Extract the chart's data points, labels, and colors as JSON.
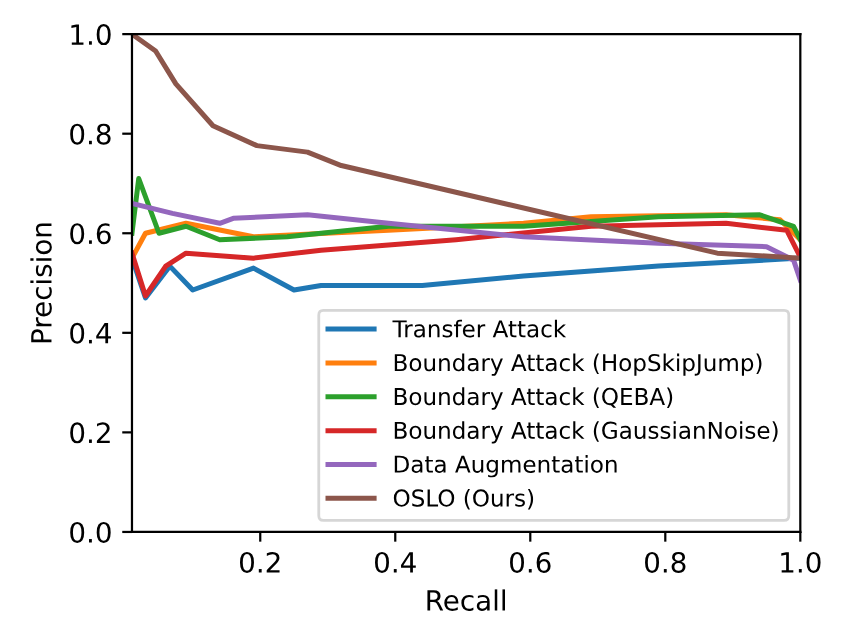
{
  "chart_data": {
    "type": "line",
    "xlabel": "Recall",
    "ylabel": "Precision",
    "xlim": [
      0.01,
      1.0
    ],
    "ylim": [
      0.0,
      1.0
    ],
    "xticks": [
      0.2,
      0.4,
      0.6,
      0.8,
      {
        "value": 1.0,
        "label": "1.0"
      }
    ],
    "yticks": [
      {
        "value": 0.0,
        "label": "0.0"
      },
      0.2,
      0.4,
      0.6,
      0.8,
      {
        "value": 1.0,
        "label": "1.0"
      }
    ],
    "legend": "bottom right",
    "grid": false,
    "series": [
      {
        "name": "Transfer Attack",
        "color": "#1f77b4",
        "x": [
          0.01,
          0.03,
          0.066,
          0.1,
          0.19,
          0.25,
          0.29,
          0.44,
          0.59,
          0.79,
          1.0
        ],
        "values": [
          0.55,
          0.47,
          0.534,
          0.486,
          0.53,
          0.486,
          0.495,
          0.495,
          0.514,
          0.534,
          0.55
        ]
      },
      {
        "name": "Boundary Attack (HopSkipJump)",
        "color": "#ff7f0e",
        "x": [
          0.01,
          0.03,
          0.09,
          0.19,
          0.39,
          0.59,
          0.69,
          0.89,
          0.97,
          1.0
        ],
        "values": [
          0.55,
          0.6,
          0.62,
          0.593,
          0.606,
          0.62,
          0.633,
          0.637,
          0.627,
          0.587
        ]
      },
      {
        "name": "Boundary Attack (QEBA)",
        "color": "#2ca02c",
        "x": [
          0.01,
          0.02,
          0.05,
          0.09,
          0.14,
          0.24,
          0.39,
          0.59,
          0.79,
          0.94,
          0.99,
          1.0
        ],
        "values": [
          0.6,
          0.71,
          0.6,
          0.614,
          0.587,
          0.593,
          0.614,
          0.614,
          0.633,
          0.637,
          0.614,
          0.587
        ]
      },
      {
        "name": "Boundary Attack (GaussianNoise)",
        "color": "#d62728",
        "x": [
          0.01,
          0.03,
          0.06,
          0.09,
          0.19,
          0.29,
          0.49,
          0.69,
          0.89,
          0.98,
          1.0
        ],
        "values": [
          0.56,
          0.474,
          0.534,
          0.56,
          0.55,
          0.566,
          0.587,
          0.614,
          0.62,
          0.606,
          0.552
        ]
      },
      {
        "name": "Data Augmentation",
        "color": "#9467bd",
        "x": [
          0.01,
          0.07,
          0.14,
          0.16,
          0.27,
          0.39,
          0.59,
          0.79,
          0.95,
          0.99,
          1.0
        ],
        "values": [
          0.66,
          0.64,
          0.62,
          0.63,
          0.637,
          0.62,
          0.593,
          0.58,
          0.573,
          0.546,
          0.506
        ]
      },
      {
        "name": "OSLO (Ours)",
        "color": "#8c564b",
        "x": [
          0.01,
          0.045,
          0.075,
          0.13,
          0.195,
          0.27,
          0.32,
          0.877,
          1.0
        ],
        "values": [
          1.0,
          0.966,
          0.9,
          0.816,
          0.776,
          0.763,
          0.736,
          0.56,
          0.55
        ]
      }
    ]
  }
}
